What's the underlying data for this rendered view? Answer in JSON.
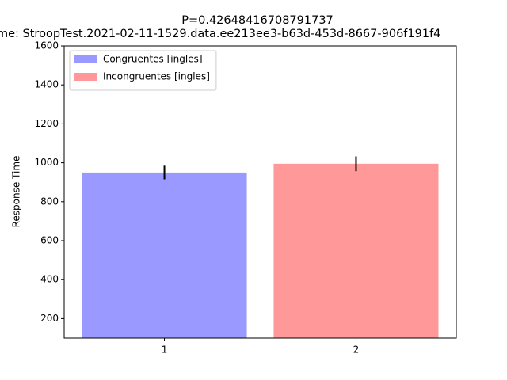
{
  "chart_data": {
    "type": "bar",
    "title": "P=0.42648416708791737",
    "subtitle": "me: StroopTest.2021-02-11-1529.data.ee213ee3-b63d-453d-8667-906f191f4",
    "y_label": "Response Time",
    "series": [
      {
        "name": "Congruentes [ingles]",
        "color": "#9999ff",
        "x": [
          1
        ],
        "values": [
          950
        ],
        "errors": [
          35
        ]
      },
      {
        "name": "Incongruentes [ingles]",
        "color": "#ff9999",
        "x": [
          2
        ],
        "values": [
          995
        ],
        "errors": [
          38
        ]
      }
    ],
    "xlim": [
      0.477,
      2.523
    ],
    "xticks": [
      1,
      2
    ],
    "ylim": [
      100,
      1600
    ],
    "yticks": [
      200,
      400,
      600,
      800,
      1000,
      1200,
      1400,
      1600
    ],
    "legend": "upper left",
    "grid": false
  }
}
